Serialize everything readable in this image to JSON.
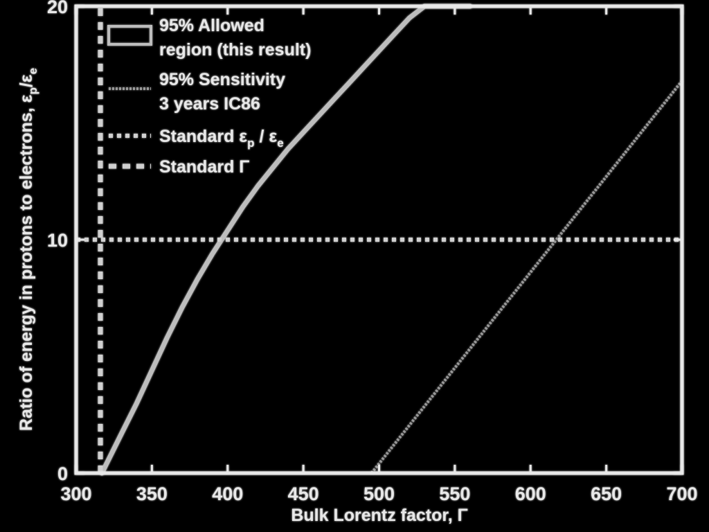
{
  "chart_data": {
    "type": "line",
    "xlabel": "Bulk Lorentz factor, Γ",
    "ylabel": "Ratio of energy in protons to electrons, εp/εe",
    "xlim": [
      300,
      700
    ],
    "ylim": [
      0,
      20
    ],
    "xticks": [
      "300",
      "350",
      "400",
      "450",
      "500",
      "550",
      "600",
      "650",
      "700"
    ],
    "yticks": [
      "0",
      "10",
      "20"
    ],
    "grid": false,
    "legend_position": "top-left",
    "legend": [
      {
        "label_line1": "95% Allowed",
        "label_line2": "region (this result)",
        "style": "open-box"
      },
      {
        "label_line1": "95% Sensitivity",
        "label_line2": "3 years IC86",
        "style": "dotted"
      },
      {
        "label_main": "Standard ε",
        "label_sub1": "p",
        "label_sep": " / ε",
        "label_sub2": "e",
        "style": "dots"
      },
      {
        "label_main": "Standard Γ",
        "style": "dashed"
      }
    ],
    "series": [
      {
        "style": "allowed-boundary",
        "x": [
          317,
          320,
          330,
          340,
          350,
          360,
          370,
          380,
          390,
          400,
          410,
          420,
          430,
          440,
          450,
          460,
          470,
          480,
          490,
          500,
          510,
          520,
          530,
          540,
          550,
          560
        ],
        "y": [
          0,
          0.4,
          1.7,
          3.0,
          4.4,
          5.8,
          7.1,
          8.3,
          9.4,
          10.4,
          11.4,
          12.3,
          13.1,
          13.9,
          14.6,
          15.3,
          16.0,
          16.7,
          17.4,
          18.1,
          18.8,
          19.5,
          20,
          20,
          20,
          20
        ]
      },
      {
        "style": "sensitivity",
        "x": [
          495,
          700
        ],
        "y": [
          0,
          16.8
        ]
      },
      {
        "style": "standard-ratio",
        "x": [
          300,
          700
        ],
        "y": [
          10,
          10
        ]
      },
      {
        "style": "standard-gamma",
        "x": [
          316,
          316
        ],
        "y": [
          0,
          20
        ]
      }
    ],
    "colors": {
      "background": "#000000",
      "foreground": "#e8e8e8",
      "allowed_line": "#bdbdbd",
      "sensitivity_line": "#9a9a9a",
      "standard_lines": "#d0d0d0"
    }
  }
}
